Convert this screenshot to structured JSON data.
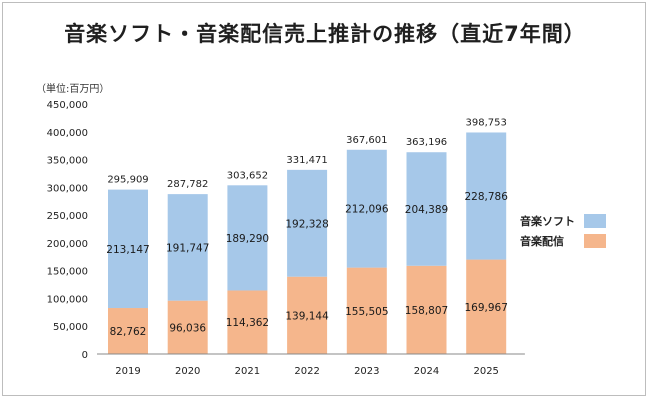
{
  "title": "音楽ソフト・音楽配信売上推計の推移（直近7年間）",
  "colors": {
    "soft": "#a6c8e9",
    "digital": "#f5b68c",
    "axis": "#888888"
  },
  "chart_data": {
    "type": "bar",
    "stacked": true,
    "title": "音楽ソフト・音楽配信売上推計の推移（直近7年間）",
    "unit_label": "（単位:百万円）",
    "categories": [
      "2019",
      "2020",
      "2021",
      "2022",
      "2023",
      "2024",
      "2025"
    ],
    "series": [
      {
        "name": "音楽配信",
        "values": [
          82762,
          96036,
          114362,
          139144,
          155505,
          158807,
          169967
        ]
      },
      {
        "name": "音楽ソフト",
        "values": [
          213147,
          191747,
          189290,
          192328,
          212096,
          204389,
          228786
        ]
      }
    ],
    "totals": [
      295909,
      287782,
      303652,
      331471,
      367601,
      363196,
      398753
    ],
    "ylim": [
      0,
      450000
    ],
    "yticks": [
      0,
      50000,
      100000,
      150000,
      200000,
      250000,
      300000,
      350000,
      400000,
      450000
    ],
    "grid": false,
    "legend_position": "right",
    "legend": [
      "音楽ソフト",
      "音楽配信"
    ]
  }
}
